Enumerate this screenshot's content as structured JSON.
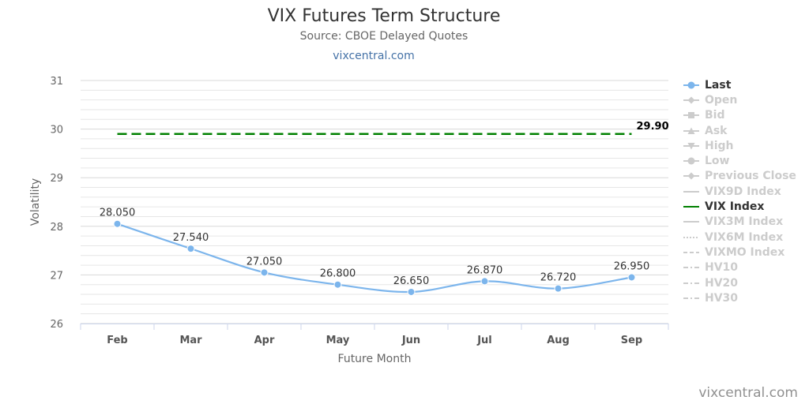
{
  "header": {
    "title": "VIX Futures Term Structure",
    "subtitle": "Source: CBOE Delayed Quotes",
    "link": "vixcentral.com"
  },
  "credit": "vixcentral.com",
  "colors": {
    "last": "#7cb5ec",
    "vix_index": "#008000",
    "grid": "#e6e6e6",
    "inactive_legend": "#cccccc",
    "text": "#333333"
  },
  "legend": {
    "items": [
      {
        "label": "Last",
        "active": true,
        "symbol": "line-circle",
        "color": "#7cb5ec"
      },
      {
        "label": "Open",
        "active": false,
        "symbol": "line-diamond"
      },
      {
        "label": "Bid",
        "active": false,
        "symbol": "line-square"
      },
      {
        "label": "Ask",
        "active": false,
        "symbol": "line-triangle"
      },
      {
        "label": "High",
        "active": false,
        "symbol": "line-triangle-down"
      },
      {
        "label": "Low",
        "active": false,
        "symbol": "line-circle"
      },
      {
        "label": "Previous Close",
        "active": false,
        "symbol": "line-diamond"
      },
      {
        "label": "VIX9D Index",
        "active": false,
        "symbol": "line"
      },
      {
        "label": "VIX Index",
        "active": true,
        "symbol": "line",
        "color": "#008000"
      },
      {
        "label": "VIX3M Index",
        "active": false,
        "symbol": "line"
      },
      {
        "label": "VIX6M Index",
        "active": false,
        "symbol": "dotted"
      },
      {
        "label": "VIXMO Index",
        "active": false,
        "symbol": "dashed"
      },
      {
        "label": "HV10",
        "active": false,
        "symbol": "dashdot"
      },
      {
        "label": "HV20",
        "active": false,
        "symbol": "dashdot"
      },
      {
        "label": "HV30",
        "active": false,
        "symbol": "dashdot"
      }
    ]
  },
  "chart_data": {
    "type": "line",
    "title": "VIX Futures Term Structure",
    "subtitle": "Source: CBOE Delayed Quotes",
    "xlabel": "Future Month",
    "ylabel": "Volatility",
    "categories": [
      "Feb",
      "Mar",
      "Apr",
      "May",
      "Jun",
      "Jul",
      "Aug",
      "Sep"
    ],
    "ylim": [
      26,
      31
    ],
    "yticks": [
      26,
      27,
      28,
      29,
      30,
      31
    ],
    "grid": true,
    "legend_position": "right",
    "series": [
      {
        "name": "Last",
        "values": [
          28.05,
          27.54,
          27.05,
          26.8,
          26.65,
          26.87,
          26.72,
          26.95
        ],
        "labels": [
          "28.050",
          "27.540",
          "27.050",
          "26.800",
          "26.650",
          "26.870",
          "26.720",
          "26.950"
        ],
        "color": "#7cb5ec",
        "style": "smooth-line-with-markers"
      },
      {
        "name": "VIX Index",
        "values": [
          29.9,
          29.9,
          29.9,
          29.9,
          29.9,
          29.9,
          29.9,
          29.9
        ],
        "end_label": "29.90",
        "color": "#008000",
        "style": "dashed"
      }
    ]
  }
}
